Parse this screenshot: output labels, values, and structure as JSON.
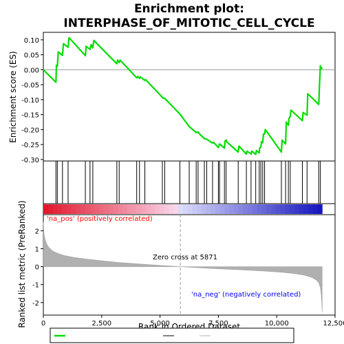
{
  "chart_data": {
    "type": "line",
    "title_line1": "Enrichment plot:",
    "title_line2": "INTERPHASE_OF_MITOTIC_CELL_CYCLE",
    "xlabel": "Rank in Ordered Dataset",
    "ylabel_top": "Enrichment score (ES)",
    "ylabel_bottom": "Ranked list metric (PreRanked)",
    "xlim": [
      0,
      12500
    ],
    "x_ticks": [
      0,
      2500,
      5000,
      7500,
      10000,
      12500
    ],
    "x_tick_labels": [
      "0",
      "2,500",
      "5,000",
      "7,500",
      "10,000",
      "12,500"
    ],
    "es_ylim": [
      -0.305,
      0.125
    ],
    "es_ticks": [
      0.1,
      0.05,
      0.0,
      -0.05,
      -0.1,
      -0.15,
      -0.2,
      -0.25,
      -0.3
    ],
    "es_tick_labels": [
      "0.10",
      "0.05",
      "0.00",
      "-0.05",
      "-0.10",
      "-0.15",
      "-0.20",
      "-0.25",
      "-0.30"
    ],
    "metric_ylim": [
      -2.7,
      2.9
    ],
    "metric_ticks": [
      2,
      1,
      0,
      -1,
      -2
    ],
    "metric_tick_labels": [
      "2",
      "1",
      "0",
      "-1",
      "-2"
    ],
    "n_genes": 11950,
    "zero_cross_rank": 5871,
    "zero_cross_label": "Zero cross at 5871",
    "pos_label": "'na_pos' (positively correlated)",
    "neg_label": "'na_neg' (negatively correlated)",
    "es_profile": {
      "x": [
        0,
        540,
        560,
        600,
        640,
        820,
        860,
        1060,
        1100,
        1800,
        1830,
        2000,
        2050,
        2120,
        2160,
        3150,
        3180,
        3250,
        3290,
        4000,
        4050,
        4120,
        4160,
        4350,
        4380,
        5100,
        5130,
        5200,
        5230,
        5850,
        6250,
        6550,
        6630,
        6700,
        6900,
        7000,
        7250,
        7300,
        7500,
        7550,
        7760,
        7790,
        7830,
        7870,
        8350,
        8380,
        8700,
        8730,
        8900,
        8930,
        9100,
        9130,
        9250,
        9270,
        9320,
        9350,
        9400,
        9430,
        9480,
        9510,
        10200,
        10230,
        10380,
        10410,
        10500,
        10530,
        10580,
        10610,
        11100,
        11130,
        11300,
        11330,
        11800,
        11830,
        11870,
        11950
      ],
      "y": [
        0.0,
        -0.042,
        0.015,
        0.012,
        0.06,
        0.048,
        0.087,
        0.075,
        0.107,
        0.047,
        0.078,
        0.068,
        0.084,
        0.073,
        0.098,
        0.02,
        0.032,
        0.024,
        0.032,
        -0.027,
        -0.022,
        -0.029,
        -0.024,
        -0.036,
        -0.033,
        -0.092,
        -0.095,
        -0.095,
        -0.098,
        -0.148,
        -0.19,
        -0.21,
        -0.208,
        -0.215,
        -0.23,
        -0.232,
        -0.245,
        -0.243,
        -0.26,
        -0.248,
        -0.262,
        -0.238,
        -0.235,
        -0.242,
        -0.275,
        -0.255,
        -0.282,
        -0.272,
        -0.282,
        -0.272,
        -0.283,
        -0.27,
        -0.278,
        -0.262,
        -0.258,
        -0.24,
        -0.244,
        -0.215,
        -0.215,
        -0.2,
        -0.275,
        -0.235,
        -0.248,
        -0.175,
        -0.185,
        -0.162,
        -0.155,
        -0.135,
        -0.17,
        -0.143,
        -0.152,
        -0.08,
        -0.116,
        -0.055,
        0.013,
        0.002
      ]
    },
    "hits": [
      540,
      600,
      820,
      1060,
      1800,
      2000,
      2120,
      3150,
      3250,
      4000,
      4120,
      4350,
      5100,
      5200,
      5850,
      6250,
      6550,
      6630,
      6900,
      7000,
      7250,
      7500,
      7550,
      7760,
      7830,
      8350,
      8700,
      8900,
      9100,
      9250,
      9320,
      9400,
      9480,
      10200,
      10380,
      10500,
      10580,
      11100,
      11300,
      11800,
      11870
    ],
    "metric": {
      "x": [
        0,
        30,
        80,
        150,
        250,
        400,
        600,
        900,
        1300,
        1800,
        2500,
        3200,
        4000,
        4800,
        5500,
        5871,
        6500,
        7200,
        8000,
        8800,
        9500,
        10200,
        10800,
        11200,
        11500,
        11700,
        11800,
        11870,
        11910,
        11950
      ],
      "y": [
        2.5,
        1.8,
        1.5,
        1.25,
        1.05,
        0.88,
        0.75,
        0.62,
        0.52,
        0.43,
        0.33,
        0.24,
        0.16,
        0.09,
        0.03,
        0.0,
        -0.05,
        -0.1,
        -0.15,
        -0.2,
        -0.25,
        -0.31,
        -0.39,
        -0.48,
        -0.6,
        -0.75,
        -0.9,
        -1.15,
        -1.6,
        -2.55
      ]
    },
    "colors": {
      "es_line": "#00dd00",
      "hit_line": "#000000",
      "metric_fill": "#b0b0b0",
      "pos_text": "#ff0000",
      "neg_text": "#0000ff",
      "zero_line": "#9a9a9a"
    }
  }
}
